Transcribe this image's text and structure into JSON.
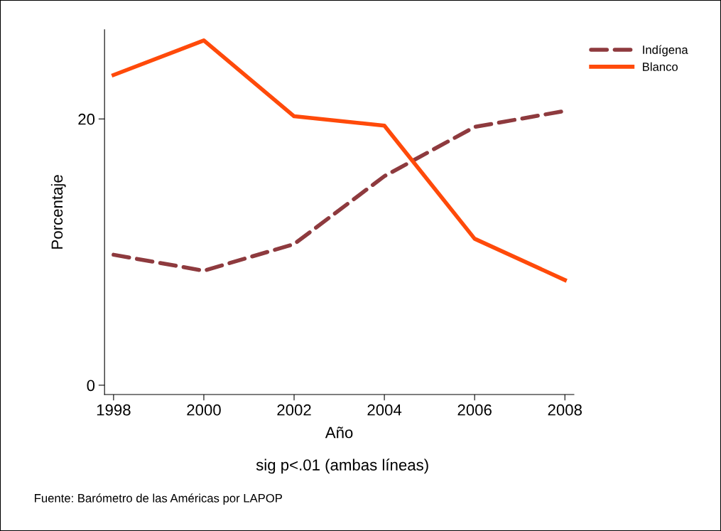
{
  "chart_data": {
    "type": "line",
    "xlabel": "Año",
    "ylabel": "Porcentaje",
    "x": [
      1998,
      2000,
      2002,
      2004,
      2006,
      2008
    ],
    "series": [
      {
        "name": "Indígena",
        "color": "#8e3a3e",
        "line_style": "dashed",
        "values": [
          9.8,
          8.6,
          10.6,
          15.7,
          19.4,
          20.6
        ]
      },
      {
        "name": "Blanco",
        "color": "#ff4a0a",
        "line_style": "solid",
        "values": [
          23.3,
          25.9,
          20.2,
          19.5,
          11.0,
          7.9
        ]
      }
    ],
    "xlim": [
      1997.8,
      2008.2
    ],
    "xticks": [
      1998,
      2000,
      2002,
      2004,
      2006,
      2008
    ],
    "ylim": [
      -0.7,
      26.7
    ],
    "yticks": [
      0,
      20
    ],
    "grid": false,
    "legend": "top right",
    "marker": "none",
    "annotations": [
      "sig p<.01 (ambas líneas)",
      "Fuente: Barómetro de las Américas por LAPOP"
    ]
  }
}
